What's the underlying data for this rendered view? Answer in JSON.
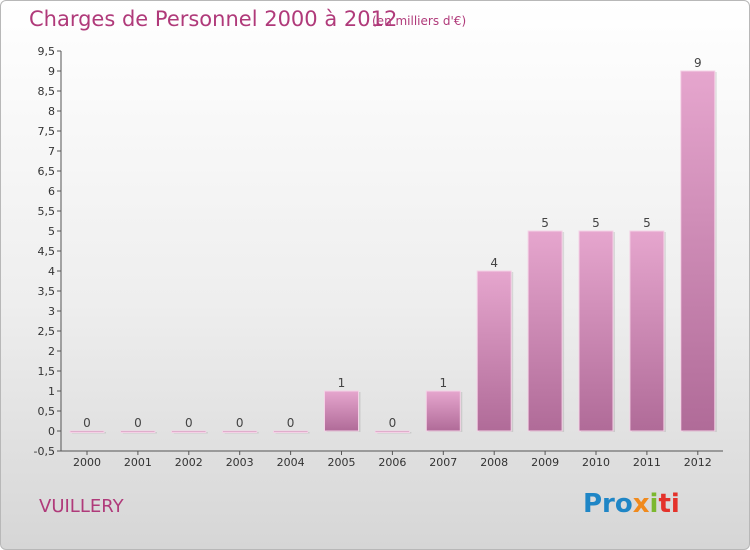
{
  "header": {
    "title": "Charges de Personnel 2000 à 2012",
    "subtitle": "(en milliers d'€)"
  },
  "footer": {
    "commune": "VUILLERY",
    "logo_parts": [
      "Pro",
      "x",
      "i",
      "ti"
    ]
  },
  "colors": {
    "title": "#b03a7a",
    "bar_top": "#e6a6ce",
    "bar_bottom": "#b06b98",
    "axis": "#555555",
    "logo_blue": "#1f86c6",
    "logo_orange": "#f08a1d",
    "logo_green": "#7cb82f",
    "logo_red": "#e4322b"
  },
  "chart_data": {
    "type": "bar",
    "title": "Charges de Personnel 2000 à 2012",
    "subtitle": "(en milliers d'€)",
    "categories": [
      "2000",
      "2001",
      "2002",
      "2003",
      "2004",
      "2005",
      "2006",
      "2007",
      "2008",
      "2009",
      "2010",
      "2011",
      "2012"
    ],
    "values": [
      0,
      0,
      0,
      0,
      0,
      1,
      0,
      1,
      4,
      5,
      5,
      5,
      9
    ],
    "value_labels": [
      "0",
      "0",
      "0",
      "0",
      "0",
      "1",
      "0",
      "1",
      "4",
      "5",
      "5",
      "5",
      "9"
    ],
    "ylim": [
      -0.5,
      9.5
    ],
    "yticks": [
      -0.5,
      0,
      0.5,
      1,
      1.5,
      2,
      2.5,
      3,
      3.5,
      4,
      4.5,
      5,
      5.5,
      6,
      6.5,
      7,
      7.5,
      8,
      8.5,
      9,
      9.5
    ],
    "ytick_labels": [
      "-0,5",
      "0",
      "0,5",
      "1",
      "1,5",
      "2",
      "2,5",
      "3",
      "3,5",
      "4",
      "4,5",
      "5",
      "5,5",
      "6",
      "6,5",
      "7",
      "7,5",
      "8",
      "8,5",
      "9",
      "9,5"
    ],
    "grid": false,
    "legend": "none"
  }
}
